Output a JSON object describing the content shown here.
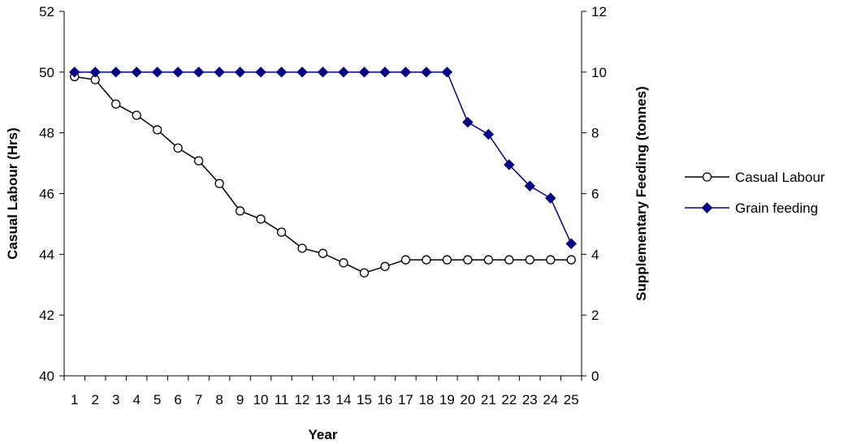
{
  "chart_data": {
    "type": "line",
    "xlabel": "Year",
    "ylabel_left": "Casual Labour (Hrs)",
    "ylabel_right": "Supplementary Feeding (tonnes)",
    "categories": [
      "1",
      "2",
      "3",
      "4",
      "5",
      "6",
      "7",
      "8",
      "9",
      "10",
      "11",
      "12",
      "13",
      "14",
      "15",
      "16",
      "17",
      "18",
      "19",
      "20",
      "21",
      "22",
      "23",
      "24",
      "25"
    ],
    "y_left": {
      "min": 40,
      "max": 52,
      "step": 2,
      "ticks": [
        "40",
        "42",
        "44",
        "46",
        "48",
        "50",
        "52"
      ]
    },
    "y_right": {
      "min": 0,
      "max": 12,
      "step": 2,
      "ticks": [
        "0",
        "2",
        "4",
        "6",
        "8",
        "10",
        "12"
      ]
    },
    "grid": false,
    "legend_position": "right",
    "series": [
      {
        "name": "Casual Labour",
        "axis": "left",
        "color": "#000000",
        "marker": "open-circle",
        "values": [
          49.85,
          49.75,
          48.95,
          48.58,
          48.1,
          47.5,
          47.08,
          46.33,
          45.43,
          45.16,
          44.73,
          44.2,
          44.03,
          43.72,
          43.39,
          43.6,
          43.82,
          43.82,
          43.82,
          43.82,
          43.82,
          43.82,
          43.82,
          43.82,
          43.82
        ]
      },
      {
        "name": "Grain feeding",
        "axis": "right",
        "color": "#000080",
        "marker": "filled-diamond",
        "values": [
          10,
          10,
          10,
          10,
          10,
          10,
          10,
          10,
          10,
          10,
          10,
          10,
          10,
          10,
          10,
          10,
          10,
          10,
          10,
          8.35,
          7.95,
          6.95,
          6.25,
          5.85,
          4.35
        ]
      }
    ]
  }
}
